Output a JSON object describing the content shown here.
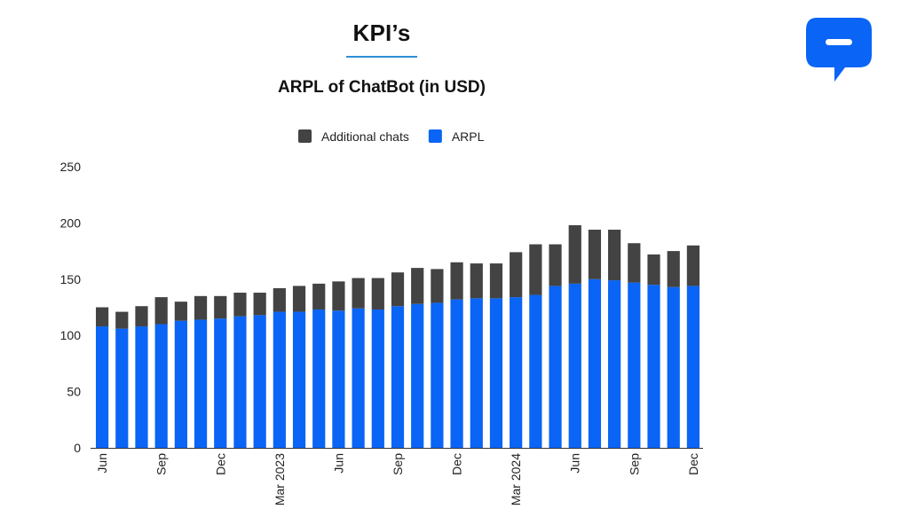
{
  "header": {
    "title": "KPI’s",
    "accent_color": "#2f8fd8"
  },
  "logo": {
    "icon": "chat-bubble-icon",
    "color": "#0a64f5"
  },
  "chart_data": {
    "type": "bar",
    "stacked": true,
    "title": "ARPL of ChatBot (in USD)",
    "xlabel": "",
    "ylabel": "",
    "ylim": [
      0,
      250
    ],
    "yticks": [
      "0",
      "50",
      "100",
      "150",
      "200",
      "250"
    ],
    "grid": false,
    "legend_position": "top",
    "categories": [
      "2022-06",
      "2022-07",
      "2022-08",
      "2022-09",
      "2022-10",
      "2022-11",
      "2022-12",
      "2023-01",
      "2023-02",
      "2023-03",
      "2023-04",
      "2023-05",
      "2023-06",
      "2023-07",
      "2023-08",
      "2023-09",
      "2023-10",
      "2023-11",
      "2023-12",
      "2024-01",
      "2024-02",
      "2024-03",
      "2024-04",
      "2024-05",
      "2024-06",
      "2024-07",
      "2024-08",
      "2024-09",
      "2024-10",
      "2024-11",
      "2024-12"
    ],
    "x_tick_labels": [
      {
        "index": 0,
        "label": "Jun"
      },
      {
        "index": 3,
        "label": "Sep"
      },
      {
        "index": 6,
        "label": "Dec"
      },
      {
        "index": 9,
        "label": "Mar 2023"
      },
      {
        "index": 12,
        "label": "Jun"
      },
      {
        "index": 15,
        "label": "Sep"
      },
      {
        "index": 18,
        "label": "Dec"
      },
      {
        "index": 21,
        "label": "Mar 2024"
      },
      {
        "index": 24,
        "label": "Jun"
      },
      {
        "index": 27,
        "label": "Sep"
      },
      {
        "index": 30,
        "label": "Dec"
      }
    ],
    "series": [
      {
        "name": "ARPL",
        "color": "#0a64f5",
        "values": [
          108,
          106,
          108,
          110,
          113,
          114,
          115,
          117,
          118,
          121,
          121,
          123,
          122,
          124,
          123,
          126,
          128,
          129,
          132,
          133,
          133,
          134,
          136,
          144,
          146,
          150,
          149,
          147,
          145,
          143,
          144
        ]
      },
      {
        "name": "Additional chats",
        "color": "#434343",
        "values": [
          17,
          15,
          18,
          24,
          17,
          21,
          20,
          21,
          20,
          21,
          23,
          23,
          26,
          27,
          28,
          30,
          32,
          30,
          33,
          31,
          31,
          40,
          45,
          37,
          52,
          44,
          45,
          35,
          27,
          32,
          36
        ]
      }
    ],
    "legend_order": [
      "Additional chats",
      "ARPL"
    ]
  }
}
